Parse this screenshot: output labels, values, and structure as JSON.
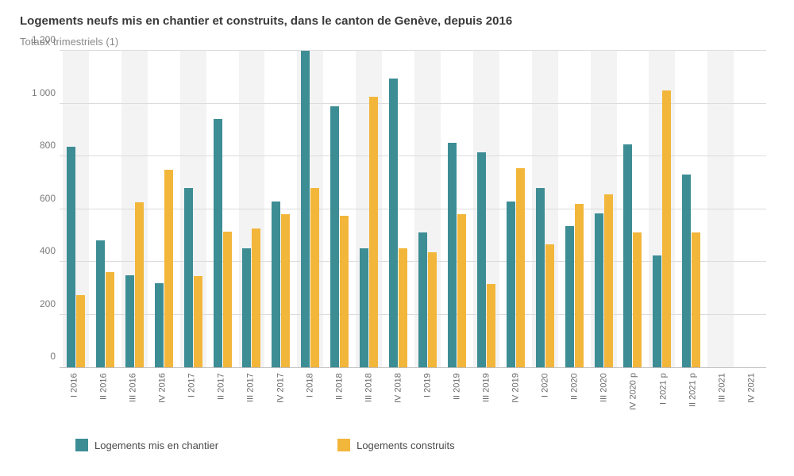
{
  "title": "Logements neufs mis en chantier et construits, dans le canton de Genève, depuis 2016",
  "subtitle": "Totaux trimestriels (1)",
  "chart": {
    "type": "bar",
    "ylim": [
      0,
      1200
    ],
    "ytick_step": 200,
    "yticks": [
      {
        "v": 0,
        "label": "0"
      },
      {
        "v": 200,
        "label": "200"
      },
      {
        "v": 400,
        "label": "400"
      },
      {
        "v": 600,
        "label": "600"
      },
      {
        "v": 800,
        "label": "800"
      },
      {
        "v": 1000,
        "label": "1 000"
      },
      {
        "v": 1200,
        "label": "1 200"
      }
    ],
    "grid_color": "#dcdcdc",
    "alt_band_color": "#f3f3f3",
    "background_color": "#ffffff",
    "series_colors": {
      "chantier": "#3d8d95",
      "construits": "#f2b63b"
    },
    "categories": [
      {
        "label": "I 2016",
        "chantier": 835,
        "construits": 275
      },
      {
        "label": "II 2016",
        "chantier": 480,
        "construits": 360
      },
      {
        "label": "III 2016",
        "chantier": 350,
        "construits": 625
      },
      {
        "label": "IV 2016",
        "chantier": 320,
        "construits": 750
      },
      {
        "label": "I 2017",
        "chantier": 680,
        "construits": 345
      },
      {
        "label": "II 2017",
        "chantier": 940,
        "construits": 515
      },
      {
        "label": "III 2017",
        "chantier": 450,
        "construits": 525
      },
      {
        "label": "IV 2017",
        "chantier": 630,
        "construits": 580
      },
      {
        "label": "I 2018",
        "chantier": 1200,
        "construits": 680
      },
      {
        "label": "II 2018",
        "chantier": 990,
        "construits": 575
      },
      {
        "label": "III 2018",
        "chantier": 450,
        "construits": 1025
      },
      {
        "label": "IV 2018",
        "chantier": 1095,
        "construits": 450
      },
      {
        "label": "I 2019",
        "chantier": 510,
        "construits": 435
      },
      {
        "label": "II 2019",
        "chantier": 850,
        "construits": 580
      },
      {
        "label": "III 2019",
        "chantier": 815,
        "construits": 315
      },
      {
        "label": "IV 2019",
        "chantier": 630,
        "construits": 755
      },
      {
        "label": "I 2020",
        "chantier": 680,
        "construits": 465
      },
      {
        "label": "II 2020",
        "chantier": 535,
        "construits": 620
      },
      {
        "label": "III 2020",
        "chantier": 585,
        "construits": 655
      },
      {
        "label": "IV 2020 p",
        "chantier": 845,
        "construits": 510
      },
      {
        "label": "I 2021 p",
        "chantier": 425,
        "construits": 1050
      },
      {
        "label": "II 2021 p",
        "chantier": 730,
        "construits": 510
      },
      {
        "label": "III 2021",
        "chantier": null,
        "construits": null
      },
      {
        "label": "IV 2021",
        "chantier": null,
        "construits": null
      }
    ]
  },
  "legend": {
    "items": [
      {
        "label": "Logements mis en chantier",
        "color": "#3d8d95"
      },
      {
        "label": "Logements construits",
        "color": "#f2b63b"
      }
    ]
  }
}
